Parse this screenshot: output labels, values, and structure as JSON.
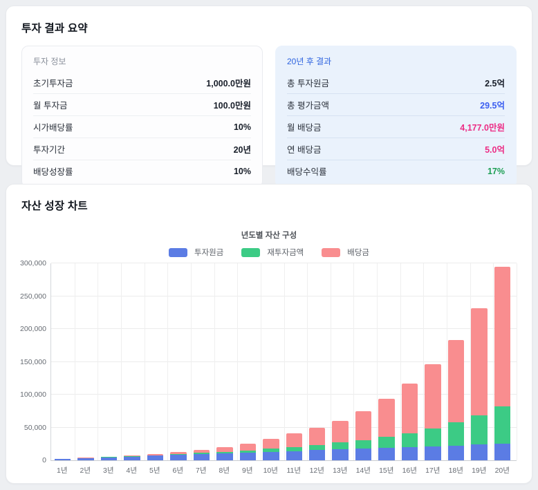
{
  "summary_card": {
    "title": "투자 결과 요약",
    "info_panel": {
      "header": "투자 정보",
      "rows": [
        {
          "label": "초기투자금",
          "value": "1,000.0만원",
          "color": "#171d28"
        },
        {
          "label": "월 투자금",
          "value": "100.0만원",
          "color": "#171d28"
        },
        {
          "label": "시가배당률",
          "value": "10%",
          "color": "#171d28"
        },
        {
          "label": "투자기간",
          "value": "20년",
          "color": "#171d28"
        },
        {
          "label": "배당성장률",
          "value": "10%",
          "color": "#171d28"
        }
      ]
    },
    "result_panel": {
      "header": "20년 후 결과",
      "rows": [
        {
          "label": "총 투자원금",
          "value": "2.5억",
          "color": "#171d28"
        },
        {
          "label": "총 평가금액",
          "value": "29.5억",
          "color": "#3b5ef0"
        },
        {
          "label": "월 배당금",
          "value": "4,177.0만원",
          "color": "#ec2d85"
        },
        {
          "label": "연 배당금",
          "value": "5.0억",
          "color": "#ec2d85"
        },
        {
          "label": "배당수익률",
          "value": "17%",
          "color": "#1c9e53"
        }
      ]
    }
  },
  "chart_card": {
    "title": "자산 성장 차트"
  },
  "chart_data": {
    "type": "bar",
    "stacked": true,
    "title": "년도별 자산 구성",
    "unit": "만원",
    "legend_position": "top",
    "grid": true,
    "ylim": [
      0,
      300000
    ],
    "y_ticks": [
      "0",
      "50,000",
      "100,000",
      "150,000",
      "200,000",
      "250,000",
      "300,000"
    ],
    "categories": [
      "1년",
      "2년",
      "3년",
      "4년",
      "5년",
      "6년",
      "7년",
      "8년",
      "9년",
      "10년",
      "11년",
      "12년",
      "13년",
      "14년",
      "15년",
      "16년",
      "17년",
      "18년",
      "19년",
      "20년"
    ],
    "series": [
      {
        "name": "투자원금",
        "color": "#5b7ce4",
        "values": [
          2200,
          3400,
          4600,
          5800,
          7000,
          8200,
          9400,
          10600,
          11800,
          13000,
          14200,
          15400,
          16600,
          17800,
          19000,
          20200,
          21400,
          22600,
          23800,
          25000
        ]
      },
      {
        "name": "재투자금액",
        "color": "#3ccb85",
        "values": [
          50,
          150,
          300,
          500,
          800,
          1200,
          1800,
          2500,
          3400,
          4500,
          5900,
          8300,
          10600,
          13200,
          16500,
          20700,
          27500,
          35000,
          44500,
          57000
        ]
      },
      {
        "name": "배당금",
        "color": "#f98d8f",
        "values": [
          150,
          350,
          600,
          1100,
          1800,
          3000,
          4600,
          6900,
          10300,
          15400,
          20700,
          26000,
          33300,
          44200,
          58200,
          75500,
          97300,
          125500,
          163500,
          213000
        ]
      }
    ]
  }
}
